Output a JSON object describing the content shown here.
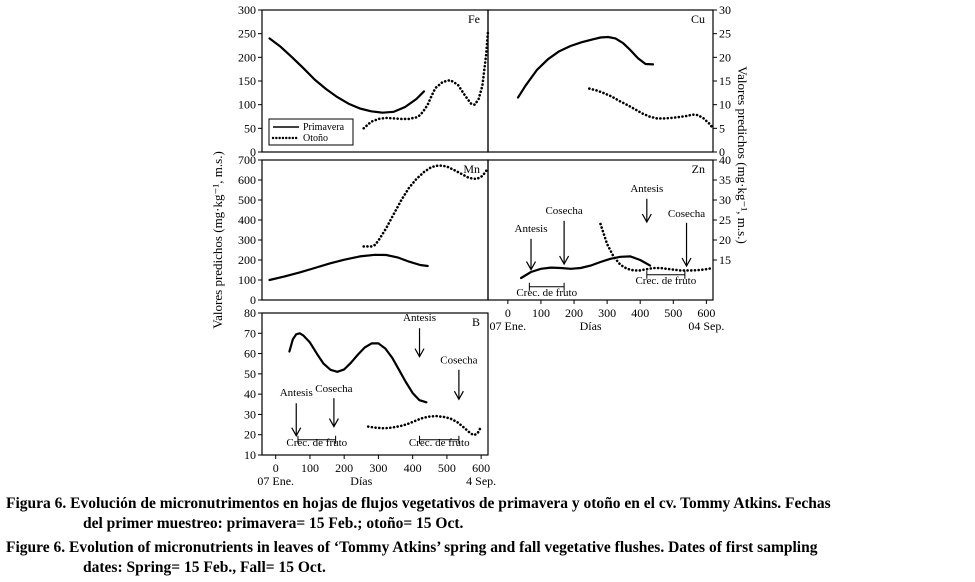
{
  "chart_data": [
    {
      "id": "fe",
      "type": "line",
      "panel_label": "Fe",
      "ylim": [
        0,
        300
      ],
      "yticks": [
        0,
        50,
        100,
        150,
        200,
        250,
        300
      ],
      "yaxis_side": "left",
      "xlim": [
        0,
        600
      ],
      "legend": {
        "position": "bottom-left",
        "entries": [
          "Primavera",
          "Otoño"
        ]
      },
      "series": [
        {
          "name": "Primavera",
          "style": "solid",
          "x": [
            20,
            50,
            80,
            110,
            140,
            170,
            200,
            230,
            260,
            290,
            320,
            350,
            380,
            410,
            430
          ],
          "y": [
            240,
            222,
            200,
            177,
            153,
            133,
            116,
            102,
            92,
            86,
            83,
            85,
            95,
            112,
            128
          ]
        },
        {
          "name": "Otoño",
          "style": "dotted",
          "x": [
            270,
            290,
            310,
            330,
            350,
            370,
            390,
            410,
            420,
            430,
            440,
            450,
            460,
            480,
            500,
            520,
            540,
            555,
            565,
            575,
            585,
            595,
            600
          ],
          "y": [
            50,
            64,
            70,
            72,
            71,
            70,
            70,
            73,
            78,
            88,
            100,
            118,
            135,
            148,
            152,
            142,
            118,
            102,
            100,
            112,
            140,
            205,
            255
          ]
        }
      ],
      "annotations": []
    },
    {
      "id": "cu",
      "type": "line",
      "panel_label": "Cu",
      "ylim": [
        0,
        30
      ],
      "yticks": [
        0,
        5,
        10,
        15,
        20,
        25,
        30
      ],
      "yaxis_side": "right",
      "xlim": [
        0,
        600
      ],
      "series": [
        {
          "name": "Primavera",
          "style": "solid",
          "x": [
            80,
            100,
            130,
            160,
            190,
            220,
            250,
            280,
            300,
            320,
            340,
            360,
            380,
            400,
            420,
            440
          ],
          "y": [
            11.5,
            14,
            17.3,
            19.6,
            21.3,
            22.4,
            23.2,
            23.8,
            24.2,
            24.3,
            24,
            23,
            21.5,
            19.8,
            18.6,
            18.5
          ]
        },
        {
          "name": "Otoño",
          "style": "dotted",
          "x": [
            270,
            290,
            310,
            330,
            350,
            370,
            390,
            410,
            430,
            450,
            470,
            490,
            510,
            530,
            545,
            560,
            575,
            590,
            600
          ],
          "y": [
            13.4,
            13,
            12.4,
            11.7,
            10.8,
            10,
            9.1,
            8.2,
            7.5,
            7.1,
            7.1,
            7.2,
            7.4,
            7.6,
            7.9,
            7.8,
            7.1,
            6,
            5
          ]
        }
      ],
      "annotations": []
    },
    {
      "id": "mn",
      "type": "line",
      "panel_label": "Mn",
      "ylim": [
        0,
        700
      ],
      "yticks": [
        0,
        100,
        200,
        300,
        400,
        500,
        600,
        700
      ],
      "yaxis_side": "left",
      "xlim": [
        0,
        600
      ],
      "series": [
        {
          "name": "Primavera",
          "style": "solid",
          "x": [
            20,
            60,
            100,
            140,
            180,
            220,
            260,
            300,
            330,
            360,
            390,
            420,
            440
          ],
          "y": [
            100,
            118,
            138,
            160,
            183,
            202,
            218,
            226,
            225,
            213,
            192,
            175,
            170
          ]
        },
        {
          "name": "Otoño",
          "style": "dotted",
          "x": [
            270,
            290,
            300,
            310,
            330,
            350,
            370,
            390,
            410,
            430,
            450,
            470,
            490,
            510,
            530,
            550,
            570,
            585,
            595,
            600
          ],
          "y": [
            268,
            268,
            275,
            300,
            360,
            430,
            500,
            560,
            605,
            640,
            665,
            673,
            668,
            650,
            630,
            610,
            605,
            620,
            645,
            660
          ]
        }
      ],
      "annotations": []
    },
    {
      "id": "zn",
      "type": "line",
      "panel_label": "Zn",
      "ylim": [
        5,
        40
      ],
      "yticks": [
        15,
        20,
        25,
        30,
        35,
        40
      ],
      "yaxis_side": "right",
      "xlim": [
        -60,
        620
      ],
      "xticks": [
        0,
        100,
        200,
        300,
        400,
        500,
        600
      ],
      "series": [
        {
          "name": "Primavera",
          "style": "solid",
          "x": [
            40,
            70,
            100,
            130,
            160,
            190,
            220,
            250,
            280,
            310,
            340,
            370,
            400,
            430
          ],
          "y": [
            10.5,
            12,
            12.8,
            13.1,
            13,
            12.8,
            13,
            13.6,
            14.5,
            15.3,
            15.8,
            15.9,
            15,
            13.6
          ]
        },
        {
          "name": "Otoño",
          "style": "dotted",
          "x": [
            280,
            300,
            320,
            340,
            360,
            380,
            400,
            420,
            440,
            460,
            480,
            500,
            520,
            540,
            560,
            580,
            600,
            620
          ],
          "y": [
            24,
            19,
            15.8,
            13.8,
            12.8,
            12.4,
            12.4,
            12.7,
            13,
            13,
            12.8,
            12.6,
            12.4,
            12.4,
            12.4,
            12.5,
            12.7,
            13
          ]
        }
      ],
      "annotations": [
        {
          "text": "Antesis",
          "arrow_x": 70,
          "text_y": 22,
          "arrow_y0": 20.3,
          "arrow_y1": 12.6
        },
        {
          "text": "Cosecha",
          "arrow_x": 170,
          "text_y": 26.5,
          "arrow_y0": 24.8,
          "arrow_y1": 14
        },
        {
          "text": "Antesis",
          "arrow_x": 420,
          "text_y": 32,
          "arrow_y0": 30.3,
          "arrow_y1": 24.5
        },
        {
          "text": "Cosecha",
          "arrow_x": 540,
          "text_y": 25.8,
          "arrow_y0": 24.3,
          "arrow_y1": 13.5
        },
        {
          "text": "Crec. de fruto",
          "range": [
            65,
            170
          ],
          "text_y": 6,
          "bracket_y": 8.3
        },
        {
          "text": "Crec. de fruto",
          "range": [
            420,
            535
          ],
          "text_y": 9,
          "bracket_y": 11.3
        }
      ],
      "xlabel": "Días",
      "x_start_label": "07 Ene.",
      "x_end_label": "04 Sep."
    },
    {
      "id": "b",
      "type": "line",
      "panel_label": "B",
      "ylim": [
        10,
        80
      ],
      "yticks": [
        10,
        20,
        30,
        40,
        50,
        60,
        70,
        80
      ],
      "yaxis_side": "left",
      "xlim": [
        -40,
        620
      ],
      "xticks": [
        0,
        100,
        200,
        300,
        400,
        500,
        600
      ],
      "series": [
        {
          "name": "Primavera",
          "style": "solid",
          "x": [
            40,
            50,
            60,
            70,
            80,
            100,
            120,
            140,
            160,
            180,
            200,
            220,
            240,
            260,
            280,
            300,
            320,
            340,
            360,
            380,
            400,
            420,
            440
          ],
          "y": [
            61,
            67,
            69.5,
            70,
            69,
            65.5,
            60,
            55,
            52,
            51,
            52.2,
            55.5,
            59.5,
            63,
            65,
            65,
            62.5,
            58,
            52,
            46,
            40.5,
            37,
            36
          ]
        },
        {
          "name": "Otoño",
          "style": "dotted",
          "x": [
            270,
            290,
            310,
            330,
            350,
            370,
            390,
            410,
            430,
            450,
            470,
            490,
            510,
            530,
            550,
            570,
            580,
            590,
            600
          ],
          "y": [
            24,
            23.5,
            23.2,
            23.3,
            23.8,
            24.5,
            25.6,
            27,
            28.3,
            29,
            29.2,
            28.8,
            28,
            26.2,
            23.5,
            20.5,
            19.8,
            20.8,
            24
          ]
        }
      ],
      "annotations": [
        {
          "text": "Antesis",
          "arrow_x": 60,
          "text_y": 39,
          "arrow_y0": 35.5,
          "arrow_y1": 19.5
        },
        {
          "text": "Cosecha",
          "arrow_x": 170,
          "text_y": 41,
          "arrow_y0": 38,
          "arrow_y1": 24
        },
        {
          "text": "Antesis",
          "arrow_x": 420,
          "text_y": 76,
          "arrow_y0": 72.5,
          "arrow_y1": 58.5
        },
        {
          "text": "Cosecha",
          "arrow_x": 535,
          "text_y": 55,
          "arrow_y0": 52,
          "arrow_y1": 37.5
        },
        {
          "text": "Crec. de fruto",
          "range": [
            65,
            175
          ],
          "text_y": 14.5,
          "bracket_y": 17.5
        },
        {
          "text": "Crec. de fruto",
          "range": [
            420,
            535
          ],
          "text_y": 14.5,
          "bracket_y": 17.5
        }
      ],
      "xlabel": "Días",
      "x_start_label": "07 Ene.",
      "x_end_label": "4 Sep."
    }
  ],
  "axis_titles": {
    "left": "Valores predichos (mg·kg⁻¹, m.s.)",
    "right": "Valores predichos (mg·kg⁻¹, m.s.)"
  },
  "caption": {
    "es_line1": "Figura 6. Evolución de micronutrimentos en hojas de flujos vegetativos de primavera y otoño en el cv. Tommy Atkins. Fechas",
    "es_line2": "del primer muestreo: primavera= 15 Feb.; otoño= 15 Oct.",
    "en_line1": "Figure 6. Evolution of micronutrients in leaves of ‘Tommy Atkins’ spring and fall vegetative flushes. Dates of first sampling",
    "en_line2": "dates: Spring= 15 Feb., Fall= 15 Oct."
  }
}
